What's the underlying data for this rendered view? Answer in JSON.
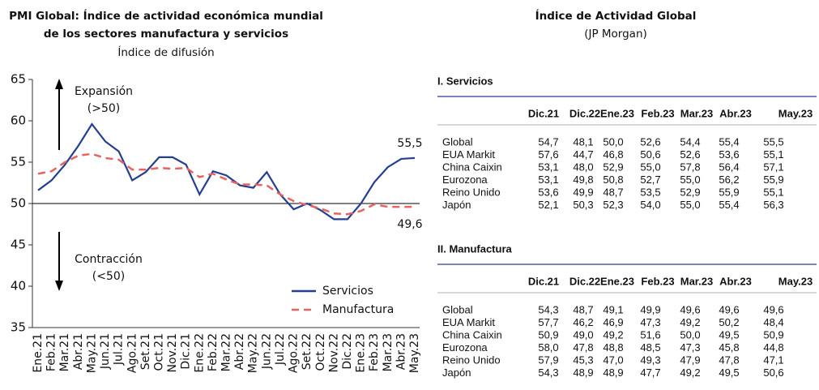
{
  "chart_data": {
    "type": "line",
    "title": "PMI Global: Índice de actividad económica mundial",
    "title_line2": "de los sectores manufactura y servicios",
    "subtitle": "Índice de difusión",
    "categories": [
      "Ene.21",
      "Feb.21",
      "Mar.21",
      "Abr.21",
      "May.21",
      "Jun.21",
      "Jul.21",
      "Ago.21",
      "Set.21",
      "Oct.21",
      "Nov.21",
      "Dic.21",
      "Ene.22",
      "Feb.22",
      "Mar.22",
      "Abr.22",
      "May.22",
      "Jun.22",
      "Jul.22",
      "Ago.22",
      "Set.22",
      "Oct.22",
      "Nov.22",
      "Dic.22",
      "Ene.23",
      "Feb.23",
      "Mar.23",
      "Abr.23",
      "May.23"
    ],
    "series": [
      {
        "name": "Servicios",
        "color": "#243f8f",
        "dashed": false,
        "values": [
          51.6,
          52.8,
          54.7,
          57.0,
          59.6,
          57.5,
          56.3,
          52.8,
          53.8,
          55.6,
          55.6,
          54.7,
          51.1,
          53.9,
          53.4,
          52.2,
          51.9,
          53.8,
          51.1,
          49.3,
          50.0,
          49.2,
          48.1,
          48.1,
          50.0,
          52.6,
          54.4,
          55.4,
          55.5
        ],
        "value_labels": [
          null,
          null,
          null,
          null,
          null,
          null,
          null,
          null,
          null,
          null,
          null,
          null,
          null,
          null,
          null,
          null,
          null,
          null,
          null,
          null,
          null,
          null,
          null,
          null,
          null,
          null,
          null,
          null,
          "55,5"
        ]
      },
      {
        "name": "Manufactura",
        "color": "#e8635f",
        "dashed": true,
        "values": [
          53.6,
          53.9,
          55.0,
          55.8,
          56.0,
          55.5,
          55.3,
          54.1,
          54.1,
          54.3,
          54.2,
          54.3,
          53.2,
          53.6,
          52.9,
          52.3,
          52.3,
          52.2,
          51.1,
          50.3,
          49.8,
          49.4,
          48.8,
          48.7,
          49.1,
          49.9,
          49.6,
          49.6,
          49.6
        ],
        "value_labels": [
          null,
          null,
          null,
          null,
          null,
          null,
          null,
          null,
          null,
          null,
          null,
          null,
          null,
          null,
          null,
          null,
          null,
          null,
          null,
          null,
          null,
          null,
          null,
          null,
          null,
          null,
          null,
          null,
          "49,6"
        ]
      }
    ],
    "ylim": [
      35,
      65
    ],
    "yticks": [
      35,
      40,
      45,
      50,
      55,
      60,
      65
    ],
    "reference_line": 50,
    "grid": false,
    "legend": "lower right",
    "annotations": [
      "Expansión",
      "(>50)",
      "Contracción",
      "(<50)"
    ]
  },
  "tables_title": "Índice de Actividad Global",
  "tables_subtitle": "(JP Morgan)",
  "tables": [
    {
      "title": "I. Servicios",
      "columns": [
        "Dic.21",
        "Dic.22",
        "Ene.23",
        "Feb.23",
        "Mar.23",
        "Abr.23",
        "May.23"
      ],
      "rows": [
        [
          "Global",
          "54,7",
          "48,1",
          "50,0",
          "52,6",
          "54,4",
          "55,4",
          "55,5"
        ],
        [
          "EUA Markit",
          "57,6",
          "44,7",
          "46,8",
          "50,6",
          "52,6",
          "53,6",
          "55,1"
        ],
        [
          "China Caixin",
          "53,1",
          "48,0",
          "52,9",
          "55,0",
          "57,8",
          "56,4",
          "57,1"
        ],
        [
          "Eurozona",
          "53,1",
          "49,8",
          "50,8",
          "52,7",
          "55,0",
          "56,2",
          "55,9"
        ],
        [
          "Reino Unido",
          "53,6",
          "49,9",
          "48,7",
          "53,5",
          "52,9",
          "55,9",
          "55,1"
        ],
        [
          "Japón",
          "52,1",
          "50,3",
          "52,3",
          "54,0",
          "55,0",
          "55,4",
          "56,3"
        ]
      ]
    },
    {
      "title": "II. Manufactura",
      "columns": [
        "Dic.21",
        "Dic.22",
        "Ene.23",
        "Feb.23",
        "Mar.23",
        "Abr.23",
        "May.23"
      ],
      "rows": [
        [
          "Global",
          "54,3",
          "48,7",
          "49,1",
          "49,9",
          "49,6",
          "49,6",
          "49,6"
        ],
        [
          "EUA Markit",
          "57,7",
          "46,2",
          "46,9",
          "47,3",
          "49,2",
          "50,2",
          "48,4"
        ],
        [
          "China Caixin",
          "50,9",
          "49,0",
          "49,2",
          "51,6",
          "50,0",
          "49,5",
          "50,9"
        ],
        [
          "Eurozona",
          "58,0",
          "47,8",
          "48,8",
          "48,5",
          "47,3",
          "45,8",
          "44,8"
        ],
        [
          "Reino Unido",
          "57,9",
          "45,3",
          "47,0",
          "49,3",
          "47,9",
          "47,8",
          "47,1"
        ],
        [
          "Japón",
          "54,3",
          "48,9",
          "48,9",
          "47,7",
          "49,2",
          "49,5",
          "50,6"
        ]
      ]
    }
  ]
}
